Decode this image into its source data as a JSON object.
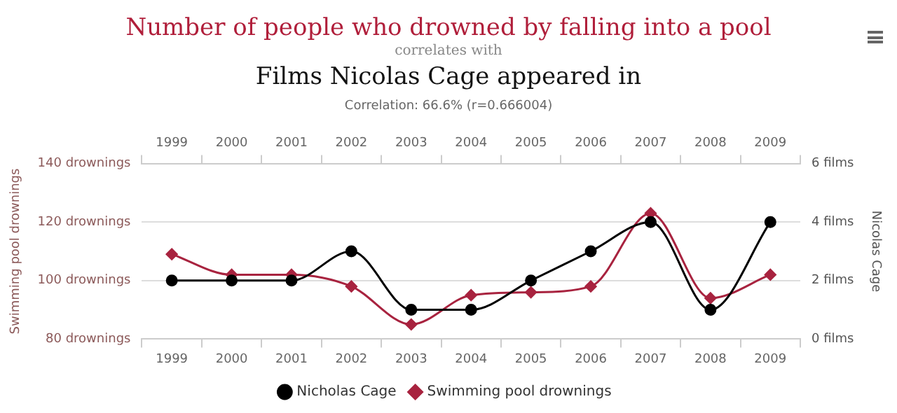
{
  "chart_data": {
    "type": "line",
    "title": "Number of people who drowned by falling into a pool",
    "subtitle": "correlates with",
    "annotations": [
      "Films Nicolas Cage appeared in",
      "Correlation: 66.6% (r=0.666004)"
    ],
    "ylabel": "Swimming pool drownings",
    "y2label": "Nicolas Cage",
    "categories": [
      "1999",
      "2000",
      "2001",
      "2002",
      "2003",
      "2004",
      "2005",
      "2006",
      "2007",
      "2008",
      "2009"
    ],
    "series": [
      {
        "name": "Nicholas Cage",
        "color": "#000000",
        "axis": "y2",
        "marker": "circle",
        "values": [
          2,
          2,
          2,
          3,
          1,
          1,
          2,
          3,
          4,
          1,
          4
        ]
      },
      {
        "name": "Swimming pool drownings",
        "color": "#a8233f",
        "marker": "diamond",
        "values": [
          109,
          102,
          102,
          98,
          85,
          95,
          96,
          98,
          123,
          94,
          102
        ]
      }
    ],
    "ylim": [
      80,
      140
    ],
    "yticks": [
      {
        "value": 80,
        "label": "80 drownings"
      },
      {
        "value": 100,
        "label": "100 drownings"
      },
      {
        "value": 120,
        "label": "120 drownings"
      },
      {
        "value": 140,
        "label": "140 drownings"
      }
    ],
    "y2lim": [
      0,
      6
    ],
    "y2ticks": [
      {
        "value": 0,
        "label": "0 films"
      },
      {
        "value": 2,
        "label": "2 films"
      },
      {
        "value": 4,
        "label": "4 films"
      },
      {
        "value": 6,
        "label": "6 films"
      }
    ],
    "grid": "y",
    "legend": "bottom",
    "line_style": "solid"
  }
}
